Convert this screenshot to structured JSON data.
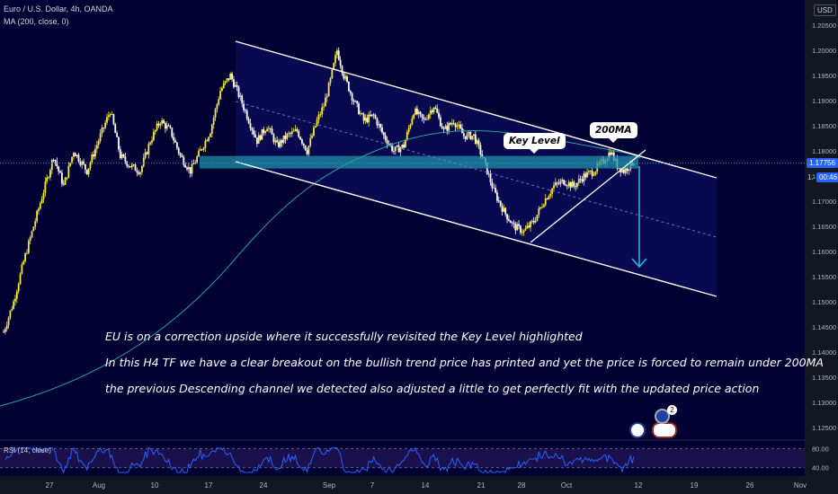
{
  "header": {
    "symbol_line": "Euro / U.S. Dollar, 4h, OANDA",
    "indicator_line": "MA (200, close, 0)"
  },
  "currency_label": "USD",
  "last_price_label": "1.17756",
  "countdown_label": "00:46",
  "countdown_prefix": "1.",
  "callouts": {
    "key_level": "Key Level",
    "ma200": "200MA"
  },
  "notes": [
    "EU is on a correction upside where it successfully revisited the Key Level highlighted",
    "In this H4 TF we have a clear breakout on the bullish trend price has printed and yet the price is forced to remain under 200MA",
    "the previous Descending channel we detected also adjusted a little to get perfectly fit with the updated price action"
  ],
  "rsi": {
    "label": "RSI (14, close)",
    "upper": "80.00",
    "lower": "40.00"
  },
  "badge_number": "2",
  "colors": {
    "background": "#000033",
    "bull_candle": "#f5e642",
    "bear_candle": "#ffffff",
    "ma_line": "#26a69a",
    "key_zone": "#1e8fa6",
    "arrow": "#29b6d8",
    "last_price_line": "#3a8fd6",
    "rsi_line": "#2962ff"
  },
  "chart_data": {
    "type": "candlestick",
    "timeframe": "4h",
    "y_axis_ticks": [
      "1.20500",
      "1.20000",
      "1.19500",
      "1.19000",
      "1.18500",
      "1.18000",
      "1.17500",
      "1.17000",
      "1.16500",
      "1.16000",
      "1.15500",
      "1.15000",
      "1.14500",
      "1.14000",
      "1.13500",
      "1.13000",
      "1.12500"
    ],
    "x_axis_ticks": [
      "27",
      "Aug",
      "10",
      "17",
      "24",
      "Sep",
      "7",
      "14",
      "21",
      "28",
      "Oct",
      "12",
      "19",
      "26",
      "Nov"
    ],
    "ylim": [
      1.122,
      1.208
    ],
    "close_path": [
      [
        0,
        1.144
      ],
      [
        6,
        1.15
      ],
      [
        12,
        1.158
      ],
      [
        18,
        1.165
      ],
      [
        24,
        1.172
      ],
      [
        30,
        1.179
      ],
      [
        36,
        1.173
      ],
      [
        42,
        1.18
      ],
      [
        50,
        1.176
      ],
      [
        58,
        1.183
      ],
      [
        64,
        1.188
      ],
      [
        70,
        1.179
      ],
      [
        76,
        1.177
      ],
      [
        82,
        1.176
      ],
      [
        88,
        1.182
      ],
      [
        94,
        1.186
      ],
      [
        100,
        1.184
      ],
      [
        106,
        1.179
      ],
      [
        112,
        1.176
      ],
      [
        118,
        1.18
      ],
      [
        124,
        1.184
      ],
      [
        130,
        1.192
      ],
      [
        136,
        1.195
      ],
      [
        140,
        1.192
      ],
      [
        146,
        1.187
      ],
      [
        152,
        1.182
      ],
      [
        158,
        1.185
      ],
      [
        164,
        1.181
      ],
      [
        170,
        1.183
      ],
      [
        176,
        1.184
      ],
      [
        182,
        1.18
      ],
      [
        188,
        1.186
      ],
      [
        192,
        1.189
      ],
      [
        196,
        1.194
      ],
      [
        200,
        1.2
      ],
      [
        204,
        1.195
      ],
      [
        210,
        1.19
      ],
      [
        216,
        1.186
      ],
      [
        222,
        1.187
      ],
      [
        228,
        1.183
      ],
      [
        234,
        1.18
      ],
      [
        240,
        1.181
      ],
      [
        246,
        1.188
      ],
      [
        252,
        1.186
      ],
      [
        258,
        1.189
      ],
      [
        264,
        1.184
      ],
      [
        270,
        1.186
      ],
      [
        276,
        1.183
      ],
      [
        282,
        1.183
      ],
      [
        288,
        1.178
      ],
      [
        294,
        1.172
      ],
      [
        300,
        1.168
      ],
      [
        306,
        1.165
      ],
      [
        312,
        1.164
      ],
      [
        318,
        1.166
      ],
      [
        324,
        1.17
      ],
      [
        330,
        1.173
      ],
      [
        336,
        1.174
      ],
      [
        342,
        1.173
      ],
      [
        348,
        1.175
      ],
      [
        354,
        1.176
      ],
      [
        360,
        1.178
      ],
      [
        364,
        1.18
      ],
      [
        368,
        1.177
      ],
      [
        372,
        1.176
      ],
      [
        378,
        1.178
      ]
    ],
    "annotations": {
      "key_level_zone": [
        1.1765,
        1.179
      ],
      "last_price": 1.17756
    },
    "rsi_levels": [
      80,
      40
    ]
  }
}
